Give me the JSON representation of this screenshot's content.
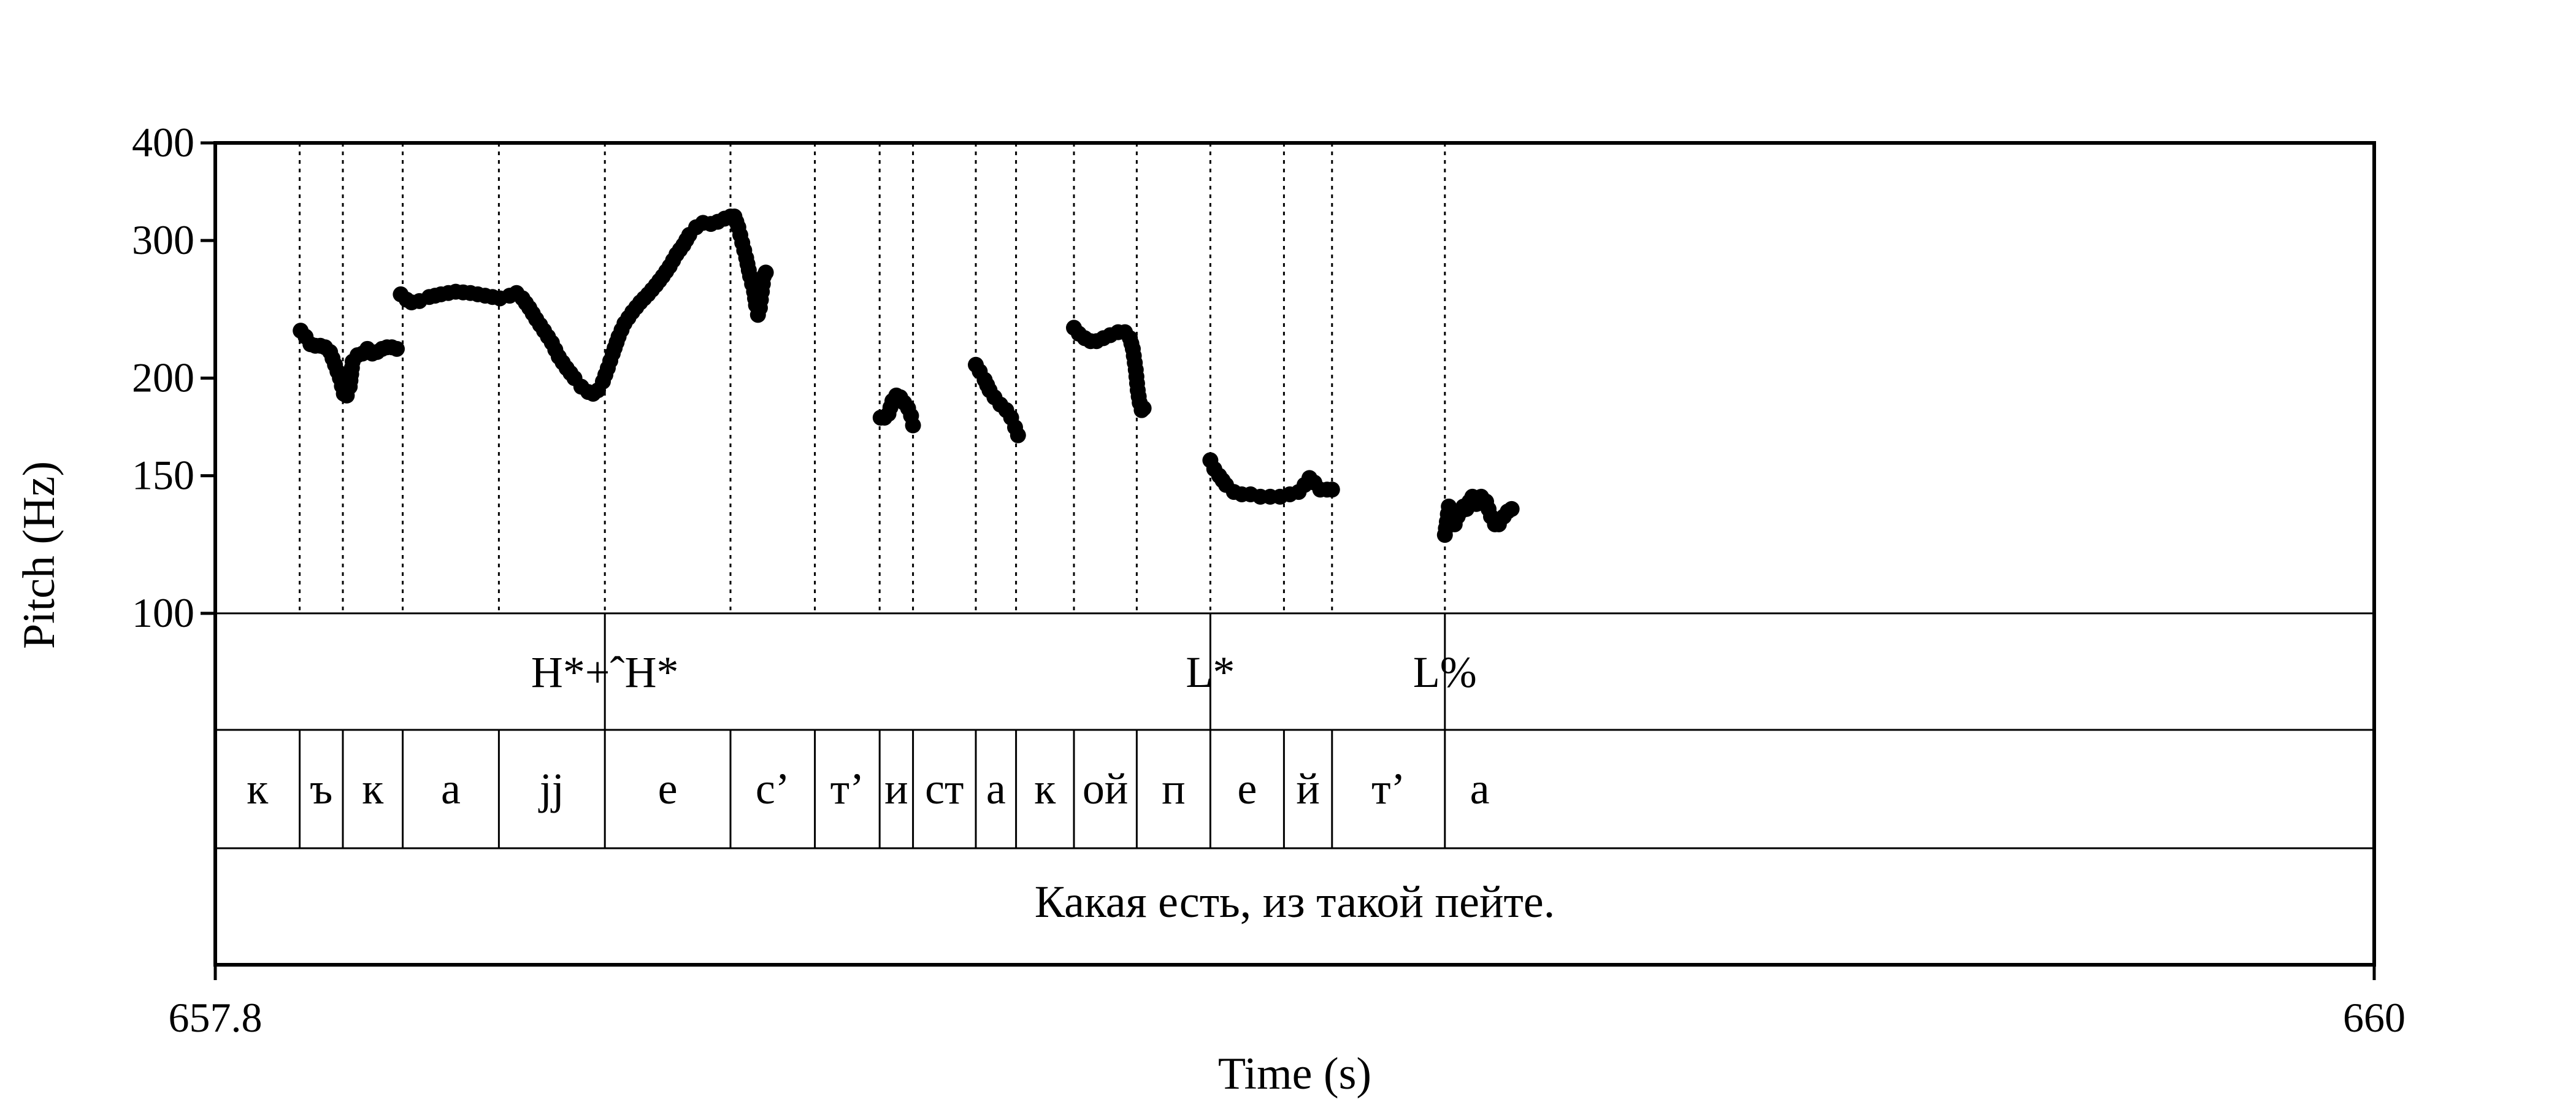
{
  "chart_data": {
    "type": "scatter",
    "title": "",
    "xlabel": "Time (s)",
    "ylabel": "Pitch (Hz)",
    "xlim": [
      657.8,
      660
    ],
    "ylim": [
      100,
      400
    ],
    "yscale": "log",
    "x_tick_labels": [
      "657.8",
      "660"
    ],
    "y_ticks": [
      100,
      150,
      200,
      300,
      400
    ],
    "y_tick_labels": [
      "100",
      "150",
      "200",
      "300",
      "400"
    ],
    "grid": false,
    "boundaries": [
      657.886,
      657.93,
      657.991,
      658.089,
      658.197,
      658.325,
      658.411,
      658.477,
      658.511,
      658.575,
      658.616,
      658.675,
      658.739,
      658.814,
      658.889,
      658.938,
      659.053
    ],
    "tones": [
      {
        "label": "H*+ˆH*",
        "time": 658.197
      },
      {
        "label": "L*",
        "time": 658.814
      },
      {
        "label": "L%",
        "time": 659.053
      }
    ],
    "segments": [
      {
        "label": "к",
        "start": 657.8,
        "end": 657.886
      },
      {
        "label": "ъ",
        "start": 657.886,
        "end": 657.93
      },
      {
        "label": "к",
        "start": 657.93,
        "end": 657.991
      },
      {
        "label": "а",
        "start": 657.991,
        "end": 658.089
      },
      {
        "label": "jj",
        "start": 658.089,
        "end": 658.197
      },
      {
        "label": "е",
        "start": 658.197,
        "end": 658.325
      },
      {
        "label": "с’",
        "start": 658.325,
        "end": 658.411
      },
      {
        "label": "т’",
        "start": 658.411,
        "end": 658.477
      },
      {
        "label": "и",
        "start": 658.477,
        "end": 658.511
      },
      {
        "label": "ст",
        "start": 658.511,
        "end": 658.575
      },
      {
        "label": "а",
        "start": 658.575,
        "end": 658.616
      },
      {
        "label": "к",
        "start": 658.616,
        "end": 658.675
      },
      {
        "label": "ой",
        "start": 658.675,
        "end": 658.739
      },
      {
        "label": "п",
        "start": 658.739,
        "end": 658.814
      },
      {
        "label": "е",
        "start": 658.814,
        "end": 658.889
      },
      {
        "label": "й",
        "start": 658.889,
        "end": 658.938
      },
      {
        "label": "т’",
        "start": 658.938,
        "end": 659.053
      },
      {
        "label": "а",
        "start": 659.053,
        "end": 659.124
      }
    ],
    "sentence": "Какая есть, из такой пейте.",
    "pitch_contours": [
      [
        [
          657.887,
          230
        ],
        [
          657.892,
          226
        ],
        [
          657.897,
          221
        ],
        [
          657.902,
          220
        ],
        [
          657.907,
          220
        ],
        [
          657.912,
          219
        ],
        [
          657.917,
          216
        ],
        [
          657.922,
          208
        ],
        [
          657.927,
          200
        ],
        [
          657.931,
          191
        ],
        [
          657.934,
          190
        ],
        [
          657.937,
          195
        ],
        [
          657.94,
          210
        ],
        [
          657.945,
          214
        ],
        [
          657.95,
          215
        ],
        [
          657.955,
          218
        ],
        [
          657.96,
          215
        ],
        [
          657.965,
          216
        ],
        [
          657.97,
          218
        ],
        [
          657.975,
          219
        ],
        [
          657.98,
          219
        ],
        [
          657.985,
          218
        ]
      ],
      [
        [
          657.989,
          256
        ],
        [
          657.995,
          252
        ],
        [
          658.0,
          250
        ],
        [
          658.008,
          251
        ],
        [
          658.018,
          254
        ],
        [
          658.03,
          256
        ],
        [
          658.045,
          258
        ],
        [
          658.06,
          257
        ],
        [
          658.075,
          255
        ],
        [
          658.09,
          253
        ],
        [
          658.1,
          255
        ],
        [
          658.107,
          257
        ],
        [
          658.113,
          253
        ],
        [
          658.12,
          246
        ],
        [
          658.127,
          238
        ],
        [
          658.135,
          230
        ],
        [
          658.143,
          222
        ],
        [
          658.15,
          213
        ],
        [
          658.158,
          206
        ],
        [
          658.166,
          200
        ],
        [
          658.173,
          195
        ],
        [
          658.18,
          192
        ],
        [
          658.185,
          191
        ],
        [
          658.19,
          193
        ],
        [
          658.195,
          198
        ],
        [
          658.2,
          206
        ],
        [
          658.205,
          215
        ],
        [
          658.211,
          226
        ],
        [
          658.217,
          235
        ],
        [
          658.225,
          243
        ],
        [
          658.233,
          250
        ],
        [
          658.241,
          256
        ],
        [
          658.249,
          263
        ],
        [
          658.256,
          270
        ],
        [
          658.263,
          278
        ],
        [
          658.27,
          288
        ],
        [
          658.277,
          296
        ],
        [
          658.283,
          305
        ],
        [
          658.29,
          312
        ],
        [
          658.297,
          316
        ],
        [
          658.305,
          315
        ],
        [
          658.312,
          317
        ],
        [
          658.319,
          320
        ],
        [
          658.325,
          322
        ],
        [
          658.329,
          322
        ],
        [
          658.333,
          312
        ],
        [
          658.337,
          298
        ],
        [
          658.341,
          285
        ],
        [
          658.345,
          270
        ],
        [
          658.349,
          258
        ],
        [
          658.351,
          248
        ],
        [
          658.353,
          241
        ],
        [
          658.355,
          246
        ],
        [
          658.357,
          258
        ],
        [
          658.359,
          270
        ],
        [
          658.361,
          273
        ]
      ],
      [
        [
          658.478,
          178
        ],
        [
          658.482,
          178
        ],
        [
          658.486,
          180
        ],
        [
          658.49,
          187
        ],
        [
          658.494,
          190
        ],
        [
          658.498,
          189
        ],
        [
          658.502,
          186
        ],
        [
          658.506,
          183
        ],
        [
          658.509,
          179
        ],
        [
          658.511,
          174
        ]
      ],
      [
        [
          658.575,
          208
        ],
        [
          658.579,
          204
        ],
        [
          658.584,
          199
        ],
        [
          658.589,
          193
        ],
        [
          658.594,
          189
        ],
        [
          658.6,
          185
        ],
        [
          658.606,
          182
        ],
        [
          658.611,
          178
        ],
        [
          658.615,
          173
        ],
        [
          658.618,
          169
        ]
      ],
      [
        [
          658.675,
          232
        ],
        [
          658.68,
          228
        ],
        [
          658.686,
          225
        ],
        [
          658.692,
          223
        ],
        [
          658.698,
          223
        ],
        [
          658.705,
          225
        ],
        [
          658.712,
          227
        ],
        [
          658.72,
          229
        ],
        [
          658.727,
          229
        ],
        [
          658.732,
          225
        ],
        [
          658.735,
          218
        ],
        [
          658.738,
          205
        ],
        [
          658.74,
          193
        ],
        [
          658.742,
          186
        ],
        [
          658.744,
          182
        ],
        [
          658.746,
          183
        ]
      ],
      [
        [
          658.814,
          157
        ],
        [
          658.818,
          153
        ],
        [
          658.823,
          150
        ],
        [
          658.83,
          146
        ],
        [
          658.838,
          143
        ],
        [
          658.846,
          142
        ],
        [
          658.855,
          142
        ],
        [
          658.865,
          141
        ],
        [
          658.875,
          141
        ],
        [
          658.885,
          141
        ],
        [
          658.895,
          142
        ],
        [
          658.904,
          143
        ],
        [
          658.91,
          146
        ],
        [
          658.915,
          149
        ],
        [
          658.92,
          147
        ],
        [
          658.926,
          144
        ],
        [
          658.933,
          144
        ],
        [
          658.938,
          144
        ]
      ],
      [
        [
          659.053,
          126
        ],
        [
          659.055,
          131
        ],
        [
          659.057,
          137
        ],
        [
          659.06,
          133
        ],
        [
          659.063,
          130
        ],
        [
          659.066,
          133
        ],
        [
          659.069,
          135
        ],
        [
          659.072,
          137
        ],
        [
          659.075,
          136
        ],
        [
          659.078,
          139
        ],
        [
          659.081,
          141
        ],
        [
          659.085,
          138
        ],
        [
          659.09,
          141
        ],
        [
          659.095,
          139
        ],
        [
          659.1,
          133
        ],
        [
          659.104,
          130
        ],
        [
          659.108,
          130
        ],
        [
          659.113,
          133
        ],
        [
          659.117,
          135
        ],
        [
          659.121,
          136
        ]
      ]
    ]
  }
}
